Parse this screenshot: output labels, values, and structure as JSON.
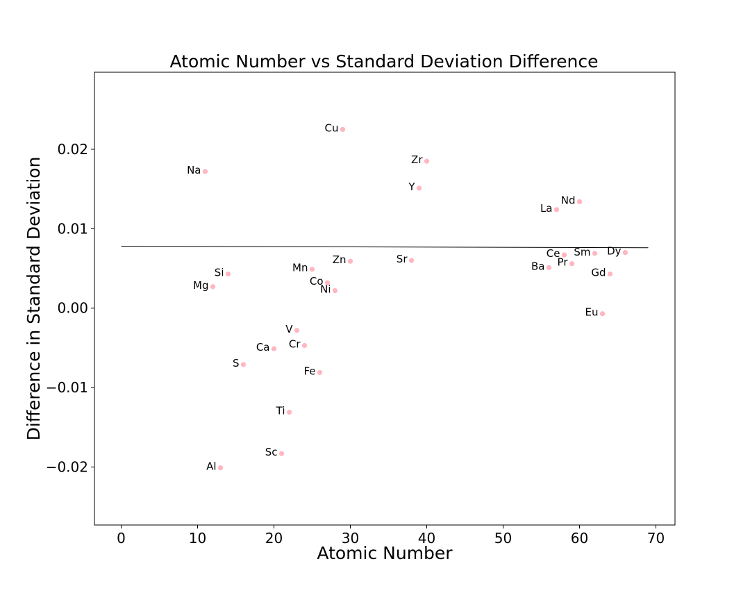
{
  "chart_data": {
    "type": "scatter",
    "title": "Atomic Number vs Standard Deviation Difference",
    "xlabel": "Atomic Number",
    "ylabel": "Difference in Standard Deviation",
    "xlim": [
      -3.5,
      72.5
    ],
    "ylim": [
      -0.0273,
      0.0297
    ],
    "xticks": [
      0,
      10,
      20,
      30,
      40,
      50,
      60,
      70
    ],
    "xtick_labels": [
      "0",
      "10",
      "20",
      "30",
      "40",
      "50",
      "60",
      "70"
    ],
    "yticks": [
      -0.02,
      -0.01,
      0.0,
      0.01,
      0.02
    ],
    "ytick_labels": [
      "−0.02",
      "−0.01",
      "0.00",
      "0.01",
      "0.02"
    ],
    "grid": false,
    "point_color": "#ffb6c1",
    "line_color": "#000000",
    "points": [
      {
        "label": "Na",
        "x": 11,
        "y": 0.0172
      },
      {
        "label": "Mg",
        "x": 12,
        "y": 0.0027
      },
      {
        "label": "Al",
        "x": 13,
        "y": -0.0201
      },
      {
        "label": "Si",
        "x": 14,
        "y": 0.0043
      },
      {
        "label": "S",
        "x": 16,
        "y": -0.0071
      },
      {
        "label": "Ca",
        "x": 20,
        "y": -0.0051
      },
      {
        "label": "Sc",
        "x": 21,
        "y": -0.0183
      },
      {
        "label": "Ti",
        "x": 22,
        "y": -0.0131
      },
      {
        "label": "V",
        "x": 23,
        "y": -0.0028
      },
      {
        "label": "Cr",
        "x": 24,
        "y": -0.0047
      },
      {
        "label": "Mn",
        "x": 25,
        "y": 0.0049
      },
      {
        "label": "Fe",
        "x": 26,
        "y": -0.0081
      },
      {
        "label": "Co",
        "x": 27,
        "y": 0.0032
      },
      {
        "label": "Ni",
        "x": 28,
        "y": 0.0022
      },
      {
        "label": "Cu",
        "x": 29,
        "y": 0.0225
      },
      {
        "label": "Zn",
        "x": 30,
        "y": 0.0059
      },
      {
        "label": "Sr",
        "x": 38,
        "y": 0.006
      },
      {
        "label": "Y",
        "x": 39,
        "y": 0.0151
      },
      {
        "label": "Zr",
        "x": 40,
        "y": 0.0185
      },
      {
        "label": "Ba",
        "x": 56,
        "y": 0.0051
      },
      {
        "label": "La",
        "x": 57,
        "y": 0.0124
      },
      {
        "label": "Ce",
        "x": 58,
        "y": 0.0067
      },
      {
        "label": "Pr",
        "x": 59,
        "y": 0.0056
      },
      {
        "label": "Nd",
        "x": 60,
        "y": 0.0134
      },
      {
        "label": "Sm",
        "x": 62,
        "y": 0.0069
      },
      {
        "label": "Eu",
        "x": 63,
        "y": -0.0007
      },
      {
        "label": "Gd",
        "x": 64,
        "y": 0.0043
      },
      {
        "label": "Dy",
        "x": 66,
        "y": 0.007
      }
    ],
    "trend_line": {
      "x": [
        0,
        69
      ],
      "y": [
        0.0078,
        0.0076
      ]
    }
  }
}
